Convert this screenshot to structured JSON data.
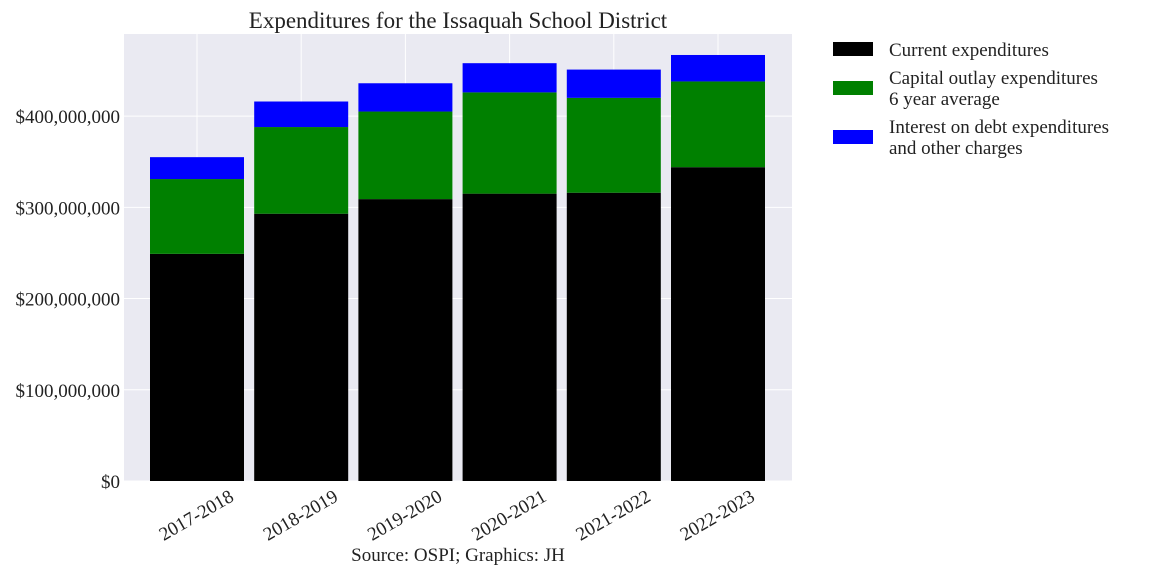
{
  "chart_data": {
    "type": "bar",
    "stacked": true,
    "title": "Expenditures for the Issaquah School District",
    "xlabel": "",
    "ylabel": "",
    "categories": [
      "2017-2018",
      "2018-2019",
      "2019-2020",
      "2020-2021",
      "2021-2022",
      "2022-2023"
    ],
    "series": [
      {
        "name": "Current expenditures",
        "color": "#000000",
        "values": [
          249000000,
          293000000,
          309000000,
          315000000,
          316000000,
          344000000
        ]
      },
      {
        "name": "Capital outlay expenditures 6 year average",
        "label_lines": [
          "Capital outlay expenditures",
          "6 year average"
        ],
        "color": "#008000",
        "values": [
          82000000,
          95000000,
          96000000,
          111000000,
          104000000,
          94000000
        ]
      },
      {
        "name": "Interest on debt expenditures and other charges",
        "label_lines": [
          "Interest on debt expenditures",
          "and other charges"
        ],
        "color": "#0000ff",
        "values": [
          24000000,
          28000000,
          31000000,
          32000000,
          31000000,
          29000000
        ]
      }
    ],
    "ylim": [
      0,
      490000000
    ],
    "yticks": [
      0,
      100000000,
      200000000,
      300000000,
      400000000
    ],
    "ytick_labels": [
      "$0",
      "$100,000,000",
      "$200,000,000",
      "$300,000,000",
      "$400,000,000"
    ],
    "grid": true,
    "legend_position": "outside-right",
    "caption": "Source: OSPI; Graphics: JH"
  },
  "colors": {
    "plot_background": "#eaeaf2",
    "grid": "#ffffff"
  }
}
